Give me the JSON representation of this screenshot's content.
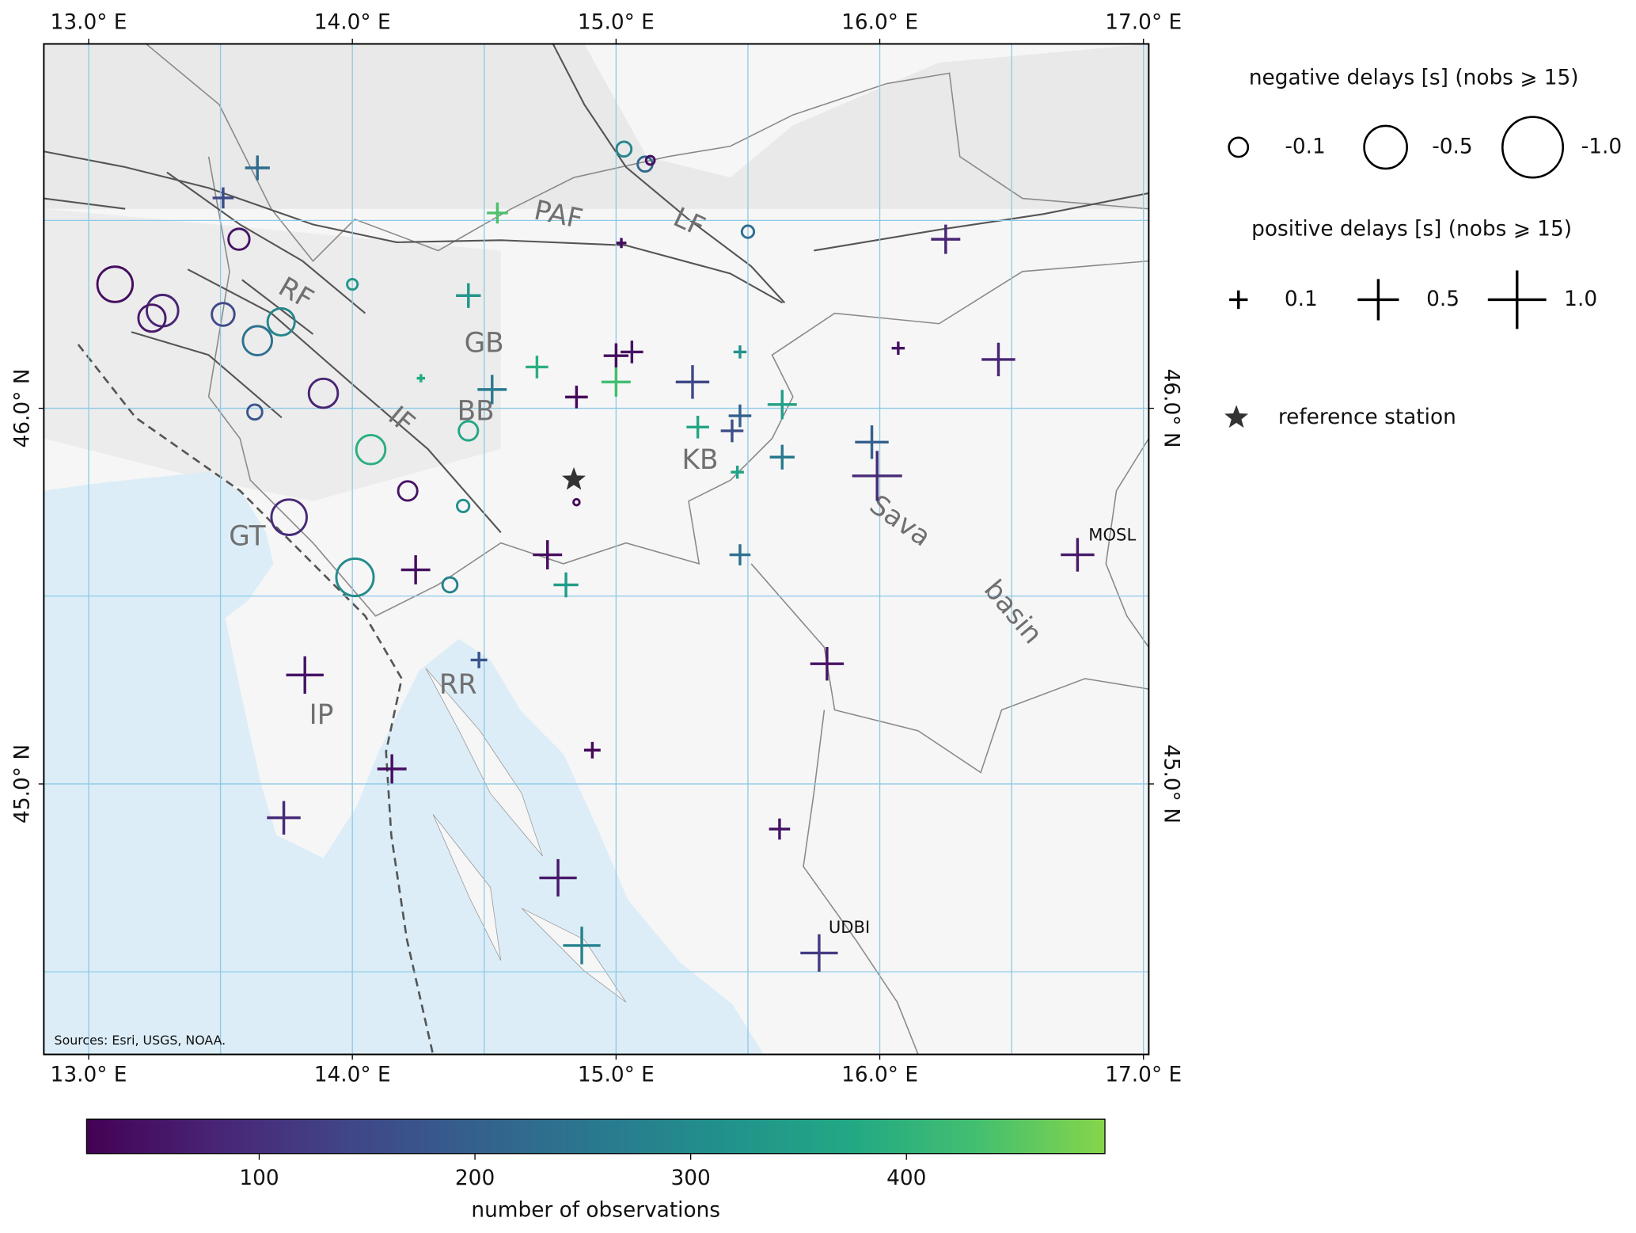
{
  "chart_data": {
    "type": "map",
    "xlim": [
      12.83,
      17.02
    ],
    "ylim": [
      44.28,
      46.97
    ],
    "xticks": [
      {
        "value": 13,
        "label": "13.0° E"
      },
      {
        "value": 14,
        "label": "14.0° E"
      },
      {
        "value": 15,
        "label": "15.0° E"
      },
      {
        "value": 16,
        "label": "16.0° E"
      },
      {
        "value": 17,
        "label": "17.0° E"
      }
    ],
    "yticks": [
      {
        "value": 45,
        "label": "45.0° N"
      },
      {
        "value": 46,
        "label": "46.0° N"
      }
    ],
    "grid": true,
    "grid_x": [
      13,
      13.5,
      14,
      14.5,
      15,
      15.5,
      16,
      16.5,
      17
    ],
    "grid_y": [
      44.5,
      45,
      45.5,
      46,
      46.5
    ],
    "grid_color": "#8ecae6",
    "source": "Sources: Esri, USGS, NOAA.",
    "region_labels": [
      "PAF",
      "LF",
      "RF",
      "IF",
      "GB",
      "BB",
      "KB",
      "GT",
      "IP",
      "RR",
      "Sava",
      "basin"
    ],
    "station_labels": [
      "MOSL",
      "UDBI"
    ],
    "reference_station": {
      "name": "reference station",
      "lon": 14.84,
      "lat": 45.81,
      "color": "#333333"
    },
    "series": [
      {
        "name": "negative delays [s] (nobs ⩾ 15)",
        "marker": "circle",
        "legend_values": [
          -0.1,
          -0.5,
          {
            "value": -1,
            "label": "-1.0"
          }
        ],
        "lon": [
          15.03,
          15.11,
          15.13,
          15.5,
          13.57,
          13.1,
          14.0,
          13.28,
          13.24,
          13.51,
          13.73,
          13.64,
          13.89,
          13.63,
          14.44,
          14.07,
          14.21,
          14.42,
          13.76,
          14.01,
          14.37,
          14.85
        ],
        "lat": [
          46.69,
          46.65,
          46.66,
          46.47,
          46.45,
          46.33,
          46.33,
          46.26,
          46.24,
          46.25,
          46.23,
          46.18,
          46.04,
          45.99,
          45.94,
          45.89,
          45.78,
          45.74,
          45.71,
          45.55,
          45.53,
          45.75
        ],
        "values": [
          -0.06,
          -0.06,
          -0.02,
          -0.04,
          -0.12,
          -0.34,
          -0.03,
          -0.27,
          -0.2,
          -0.14,
          -0.2,
          -0.23,
          -0.23,
          -0.06,
          -0.1,
          -0.23,
          -0.1,
          -0.04,
          -0.34,
          -0.38,
          -0.06,
          -0.01
        ],
        "nobs": [
          290,
          220,
          40,
          230,
          50,
          40,
          330,
          80,
          60,
          150,
          290,
          240,
          80,
          180,
          370,
          390,
          50,
          310,
          90,
          300,
          280,
          30
        ]
      },
      {
        "name": "positive delays [s] (nobs ⩾ 15)",
        "marker": "plus",
        "legend_values": [
          0.1,
          0.5,
          {
            "value": 1,
            "label": "1.0"
          }
        ],
        "lon": [
          13.64,
          13.51,
          14.55,
          15.02,
          16.25,
          14.44,
          14.26,
          14.7,
          15.0,
          15.06,
          15.47,
          16.07,
          16.45,
          14.53,
          15.0,
          14.85,
          15.29,
          15.31,
          15.44,
          15.47,
          15.63,
          15.63,
          15.46,
          15.97,
          15.99,
          16.75,
          15.47,
          14.74,
          14.24,
          14.81,
          14.48,
          15.8,
          13.82,
          14.91,
          14.15,
          13.74,
          15.62,
          14.78,
          14.87,
          15.77
        ],
        "lat": [
          46.64,
          46.56,
          46.52,
          46.44,
          46.45,
          46.3,
          46.08,
          46.11,
          46.14,
          46.15,
          46.15,
          46.16,
          46.13,
          46.05,
          46.07,
          46.03,
          46.07,
          45.95,
          45.94,
          45.98,
          46.01,
          45.87,
          45.83,
          45.91,
          45.82,
          45.61,
          45.61,
          45.61,
          45.57,
          45.53,
          45.33,
          45.32,
          45.29,
          45.09,
          45.04,
          44.91,
          44.88,
          44.75,
          44.57,
          44.55
        ],
        "values": [
          0.18,
          0.13,
          0.13,
          0.03,
          0.25,
          0.18,
          0.02,
          0.15,
          0.18,
          0.15,
          0.05,
          0.05,
          0.33,
          0.25,
          0.25,
          0.15,
          0.33,
          0.15,
          0.15,
          0.15,
          0.25,
          0.18,
          0.05,
          0.33,
          0.73,
          0.33,
          0.13,
          0.25,
          0.25,
          0.18,
          0.08,
          0.33,
          0.41,
          0.08,
          0.25,
          0.33,
          0.13,
          0.41,
          0.41,
          0.41
        ],
        "nobs": [
          230,
          150,
          440,
          40,
          80,
          330,
          380,
          390,
          40,
          50,
          320,
          50,
          80,
          260,
          430,
          30,
          150,
          370,
          160,
          200,
          350,
          260,
          360,
          200,
          90,
          60,
          240,
          40,
          40,
          340,
          170,
          50,
          50,
          30,
          40,
          90,
          50,
          60,
          280,
          120
        ]
      }
    ],
    "colorbar": {
      "label": "number of observations",
      "clim": [
        20,
        492
      ],
      "ticks": [
        100,
        200,
        300,
        400
      ],
      "colors": [
        "#440154",
        "#482475",
        "#414487",
        "#355f8d",
        "#2a788e",
        "#21918c",
        "#22a884",
        "#44bf70",
        "#86d549"
      ]
    }
  }
}
